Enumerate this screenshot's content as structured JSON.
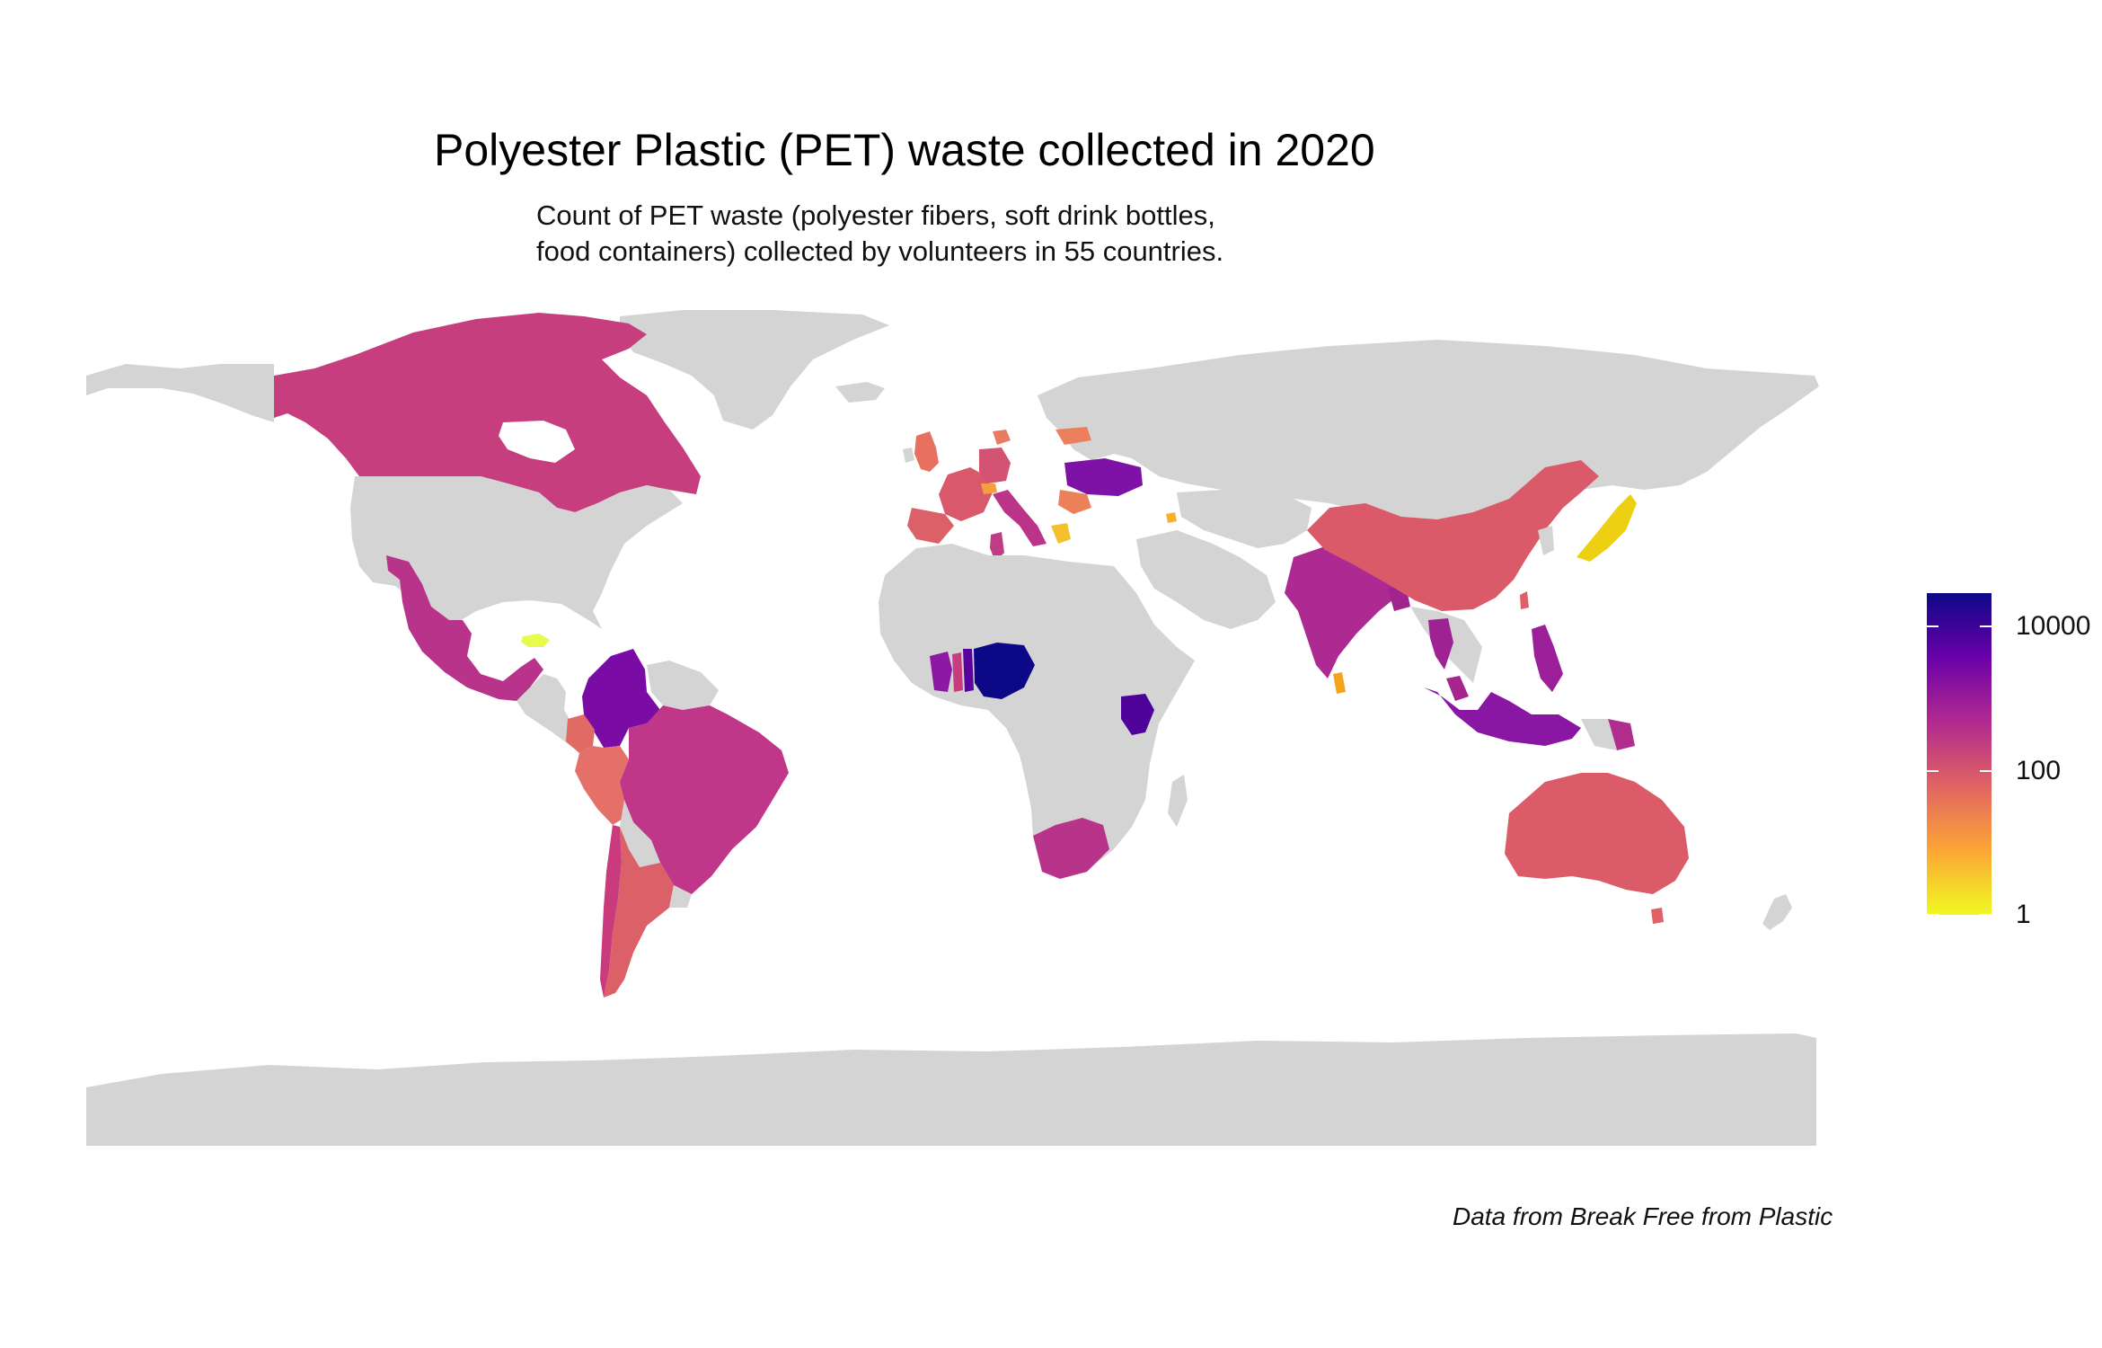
{
  "title": "Polyester Plastic (PET) waste collected in 2020",
  "subtitle_lines": [
    "Count of PET waste (polyester fibers, soft drink bottles,",
    "food containers) collected by volunteers in 55 countries."
  ],
  "caption": "Data from Break Free from Plastic",
  "legend": {
    "scale": "log10",
    "range": [
      1,
      30000
    ],
    "ticks": [
      {
        "value": 10000,
        "label": "10000"
      },
      {
        "value": 100,
        "label": "100"
      },
      {
        "value": 1,
        "label": "1"
      }
    ],
    "colors": [
      "#0d0887",
      "#6a00a8",
      "#b12a90",
      "#e16462",
      "#fca636",
      "#f0f921"
    ],
    "placement": "right"
  },
  "colors": {
    "no_data": "#d4d4d4",
    "background": "#ffffff"
  },
  "chart_data": {
    "type": "choropleth",
    "title": "Polyester Plastic (PET) waste collected in 2020",
    "scale": "log10",
    "countries": [
      {
        "name": "Nigeria",
        "value": 25000
      },
      {
        "name": "Benin",
        "value": 10000
      },
      {
        "name": "Ghana",
        "value": 3000
      },
      {
        "name": "Togo",
        "value": 800
      },
      {
        "name": "Kenya",
        "value": 8000
      },
      {
        "name": "Colombia",
        "value": 6000
      },
      {
        "name": "Indonesia",
        "value": 5000
      },
      {
        "name": "Philippines",
        "value": 2500
      },
      {
        "name": "Papua New Guinea",
        "value": 1500
      },
      {
        "name": "Ukraine",
        "value": 4000
      },
      {
        "name": "Thailand",
        "value": 1500
      },
      {
        "name": "Bangladesh",
        "value": 1200
      },
      {
        "name": "India",
        "value": 1200
      },
      {
        "name": "Malaysia",
        "value": 1500
      },
      {
        "name": "Canada",
        "value": 700
      },
      {
        "name": "Brazil",
        "value": 700
      },
      {
        "name": "Mexico",
        "value": 700
      },
      {
        "name": "South Africa",
        "value": 1000
      },
      {
        "name": "Chile",
        "value": 800
      },
      {
        "name": "Italy",
        "value": 700
      },
      {
        "name": "Tunisia",
        "value": 600
      },
      {
        "name": "China",
        "value": 250
      },
      {
        "name": "Australia",
        "value": 250
      },
      {
        "name": "Argentina",
        "value": 200
      },
      {
        "name": "France",
        "value": 250
      },
      {
        "name": "Spain",
        "value": 200
      },
      {
        "name": "United Kingdom",
        "value": 150
      },
      {
        "name": "Peru",
        "value": 150
      },
      {
        "name": "Ecuador",
        "value": 100
      },
      {
        "name": "Romania",
        "value": 80
      },
      {
        "name": "Latvia",
        "value": 80
      },
      {
        "name": "Denmark",
        "value": 100
      },
      {
        "name": "Germany",
        "value": 200
      },
      {
        "name": "Switzerland",
        "value": 60
      },
      {
        "name": "Taiwan",
        "value": 200
      },
      {
        "name": "Sri Lanka",
        "value": 20
      },
      {
        "name": "Greece",
        "value": 5
      },
      {
        "name": "Armenia",
        "value": 10
      },
      {
        "name": "Japan",
        "value": 5
      },
      {
        "name": "El Salvador",
        "value": 1
      }
    ]
  }
}
